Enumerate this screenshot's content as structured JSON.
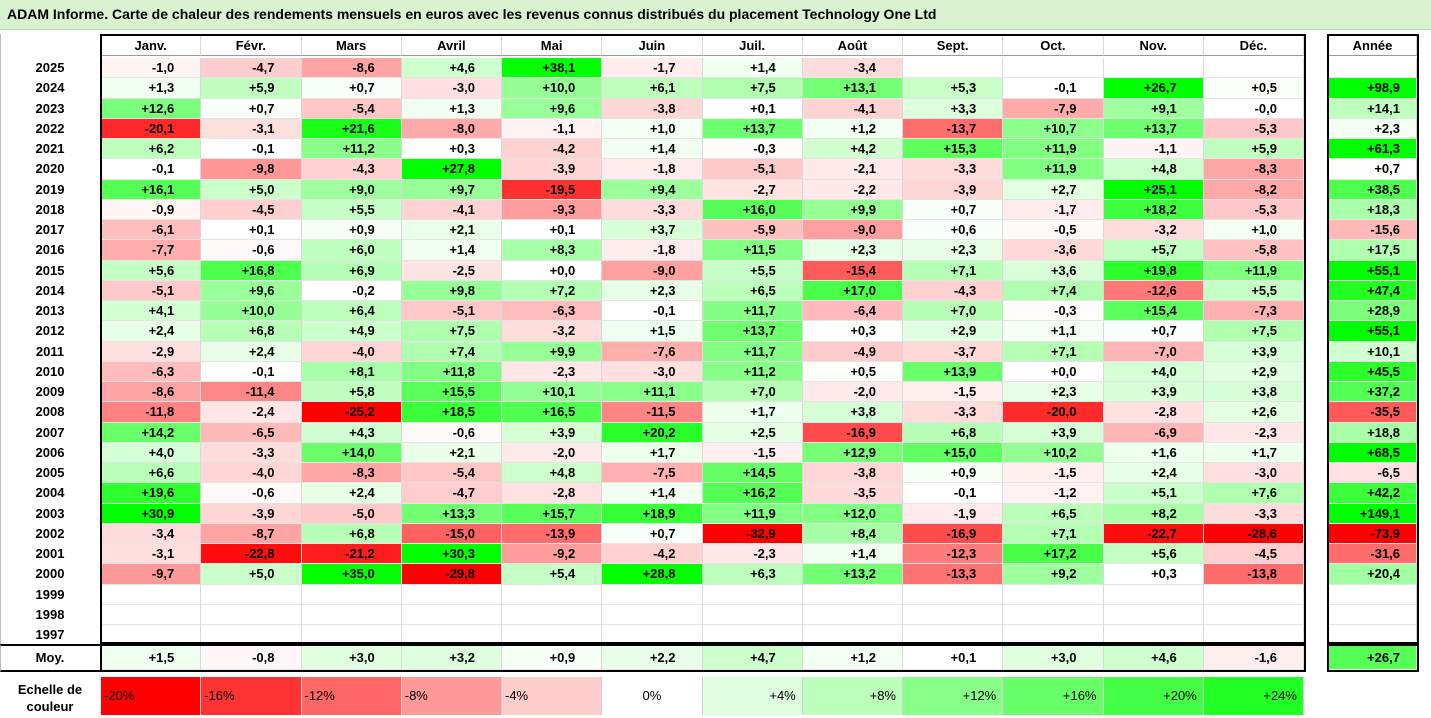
{
  "title": "ADAM Informe. Carte de chaleur des rendements mensuels en euros avec les revenus connus distribués du placement Technology One Ltd",
  "chart_data": {
    "type": "heatmap",
    "title": "ADAM Informe. Carte de chaleur des rendements mensuels en euros avec les revenus connus distribués du placement Technology One Ltd",
    "months": [
      "Janv.",
      "Févr.",
      "Mars",
      "Avril",
      "Mai",
      "Juin",
      "Juil.",
      "Août",
      "Sept.",
      "Oct.",
      "Nov.",
      "Déc."
    ],
    "year_header": "Année",
    "rows": [
      {
        "year": "2025",
        "values": [
          "-1,0",
          "-4,7",
          "-8,6",
          "+4,6",
          "+38,1",
          "-1,7",
          "+1,4",
          "-3,4",
          "",
          "",
          "",
          ""
        ],
        "annual": ""
      },
      {
        "year": "2024",
        "values": [
          "+1,3",
          "+5,9",
          "+0,7",
          "-3,0",
          "+10,0",
          "+6,1",
          "+7,5",
          "+13,1",
          "+5,3",
          "-0,1",
          "+26,7",
          "+0,5"
        ],
        "annual": "+98,9"
      },
      {
        "year": "2023",
        "values": [
          "+12,6",
          "+0,7",
          "-5,4",
          "+1,3",
          "+9,6",
          "-3,8",
          "+0,1",
          "-4,1",
          "+3,3",
          "-7,9",
          "+9,1",
          "-0,0"
        ],
        "annual": "+14,1"
      },
      {
        "year": "2022",
        "values": [
          "-20,1",
          "-3,1",
          "+21,6",
          "-8,0",
          "-1,1",
          "+1,0",
          "+13,7",
          "+1,2",
          "-13,7",
          "+10,7",
          "+13,7",
          "-5,3"
        ],
        "annual": "+2,3"
      },
      {
        "year": "2021",
        "values": [
          "+6,2",
          "-0,1",
          "+11,2",
          "+0,3",
          "-4,2",
          "+1,4",
          "-0,3",
          "+4,2",
          "+15,3",
          "+11,9",
          "-1,1",
          "+5,9"
        ],
        "annual": "+61,3"
      },
      {
        "year": "2020",
        "values": [
          "-0,1",
          "-9,8",
          "-4,3",
          "+27,8",
          "-3,9",
          "-1,8",
          "-5,1",
          "-2,1",
          "-3,3",
          "+11,9",
          "+4,8",
          "-8,3"
        ],
        "annual": "+0,7"
      },
      {
        "year": "2019",
        "values": [
          "+16,1",
          "+5,0",
          "+9,0",
          "+9,7",
          "-19,5",
          "+9,4",
          "-2,7",
          "-2,2",
          "-3,9",
          "+2,7",
          "+25,1",
          "-8,2"
        ],
        "annual": "+38,5"
      },
      {
        "year": "2018",
        "values": [
          "-0,9",
          "-4,5",
          "+5,5",
          "-4,1",
          "-9,3",
          "-3,3",
          "+16,0",
          "+9,9",
          "+0,7",
          "-1,7",
          "+18,2",
          "-5,3"
        ],
        "annual": "+18,3"
      },
      {
        "year": "2017",
        "values": [
          "-6,1",
          "+0,1",
          "+0,9",
          "+2,1",
          "+0,1",
          "+3,7",
          "-5,9",
          "-9,0",
          "+0,6",
          "-0,5",
          "-3,2",
          "+1,0"
        ],
        "annual": "-15,6"
      },
      {
        "year": "2016",
        "values": [
          "-7,7",
          "-0,6",
          "+6,0",
          "+1,4",
          "+8,3",
          "-1,8",
          "+11,5",
          "+2,3",
          "+2,3",
          "-3,6",
          "+5,7",
          "-5,8"
        ],
        "annual": "+17,5"
      },
      {
        "year": "2015",
        "values": [
          "+5,6",
          "+16,8",
          "+6,9",
          "-2,5",
          "+0,0",
          "-9,0",
          "+5,5",
          "-15,4",
          "+7,1",
          "+3,6",
          "+19,8",
          "+11,9"
        ],
        "annual": "+55,1"
      },
      {
        "year": "2014",
        "values": [
          "-5,1",
          "+9,6",
          "-0,2",
          "+9,8",
          "+7,2",
          "+2,3",
          "+6,5",
          "+17,0",
          "-4,3",
          "+7,4",
          "-12,6",
          "+5,5"
        ],
        "annual": "+47,4"
      },
      {
        "year": "2013",
        "values": [
          "+4,1",
          "+10,0",
          "+6,4",
          "-5,1",
          "-6,3",
          "-0,1",
          "+11,7",
          "-6,4",
          "+7,0",
          "-0,3",
          "+15,4",
          "-7,3"
        ],
        "annual": "+28,9"
      },
      {
        "year": "2012",
        "values": [
          "+2,4",
          "+6,8",
          "+4,9",
          "+7,5",
          "-3,2",
          "+1,5",
          "+13,7",
          "+0,3",
          "+2,9",
          "+1,1",
          "+0,7",
          "+7,5"
        ],
        "annual": "+55,1"
      },
      {
        "year": "2011",
        "values": [
          "-2,9",
          "+2,4",
          "-4,0",
          "+7,4",
          "+9,9",
          "-7,6",
          "+11,7",
          "-4,9",
          "-3,7",
          "+7,1",
          "-7,0",
          "+3,9"
        ],
        "annual": "+10,1"
      },
      {
        "year": "2010",
        "values": [
          "-6,3",
          "-0,1",
          "+8,1",
          "+11,8",
          "-2,3",
          "-3,0",
          "+11,2",
          "+0,5",
          "+13,9",
          "+0,0",
          "+4,0",
          "+2,9"
        ],
        "annual": "+45,5"
      },
      {
        "year": "2009",
        "values": [
          "-8,6",
          "-11,4",
          "+5,8",
          "+15,5",
          "+10,1",
          "+11,1",
          "+7,0",
          "-2,0",
          "-1,5",
          "+2,3",
          "+3,9",
          "+3,8"
        ],
        "annual": "+37,2"
      },
      {
        "year": "2008",
        "values": [
          "-11,8",
          "-2,4",
          "-25,2",
          "+18,5",
          "+16,5",
          "-11,5",
          "+1,7",
          "+3,8",
          "-3,3",
          "-20,0",
          "-2,8",
          "+2,6"
        ],
        "annual": "-35,5"
      },
      {
        "year": "2007",
        "values": [
          "+14,2",
          "-6,5",
          "+4,3",
          "-0,6",
          "+3,9",
          "+20,2",
          "+2,5",
          "-16,9",
          "+6,8",
          "+3,9",
          "-6,9",
          "-2,3"
        ],
        "annual": "+18,8"
      },
      {
        "year": "2006",
        "values": [
          "+4,0",
          "-3,3",
          "+14,0",
          "+2,1",
          "-2,0",
          "+1,7",
          "-1,5",
          "+12,9",
          "+15,0",
          "+10,2",
          "+1,6",
          "+1,7"
        ],
        "annual": "+68,5"
      },
      {
        "year": "2005",
        "values": [
          "+6,6",
          "-4,0",
          "-8,3",
          "-5,4",
          "+4,8",
          "-7,5",
          "+14,5",
          "-3,8",
          "+0,9",
          "-1,5",
          "+2,4",
          "-3,0"
        ],
        "annual": "-6,5"
      },
      {
        "year": "2004",
        "values": [
          "+19,6",
          "-0,6",
          "+2,4",
          "-4,7",
          "-2,8",
          "+1,4",
          "+16,2",
          "-3,5",
          "-0,1",
          "-1,2",
          "+5,1",
          "+7,6"
        ],
        "annual": "+42,2"
      },
      {
        "year": "2003",
        "values": [
          "+30,9",
          "-3,9",
          "-5,0",
          "+13,3",
          "+15,7",
          "+18,9",
          "+11,9",
          "+12,0",
          "-1,9",
          "+6,5",
          "+8,2",
          "-3,3"
        ],
        "annual": "+149,1"
      },
      {
        "year": "2002",
        "values": [
          "-3,4",
          "-8,7",
          "+6,8",
          "-15,0",
          "-13,9",
          "+0,7",
          "-32,9",
          "+8,4",
          "-16,9",
          "+7,1",
          "-22,7",
          "-28,6"
        ],
        "annual": "-73,9"
      },
      {
        "year": "2001",
        "values": [
          "-3,1",
          "-22,8",
          "-21,2",
          "+30,3",
          "-9,2",
          "-4,2",
          "-2,3",
          "+1,4",
          "-12,3",
          "+17,2",
          "+5,6",
          "-4,5"
        ],
        "annual": "-31,6"
      },
      {
        "year": "2000",
        "values": [
          "-9,7",
          "+5,0",
          "+35,0",
          "-29,8",
          "+5,4",
          "+28,8",
          "+6,3",
          "+13,2",
          "-13,3",
          "+9,2",
          "+0,3",
          "-13,8"
        ],
        "annual": "+20,4"
      },
      {
        "year": "1999",
        "values": [
          "",
          "",
          "",
          "",
          "",
          "",
          "",
          "",
          "",
          "",
          "",
          ""
        ],
        "annual": ""
      },
      {
        "year": "1998",
        "values": [
          "",
          "",
          "",
          "",
          "",
          "",
          "",
          "",
          "",
          "",
          "",
          ""
        ],
        "annual": ""
      },
      {
        "year": "1997",
        "values": [
          "",
          "",
          "",
          "",
          "",
          "",
          "",
          "",
          "",
          "",
          "",
          ""
        ],
        "annual": ""
      }
    ],
    "average": {
      "label": "Moy.",
      "values": [
        "+1,5",
        "-0,8",
        "+3,0",
        "+3,2",
        "+0,9",
        "+2,2",
        "+4,7",
        "+1,2",
        "+0,1",
        "+3,0",
        "+4,6",
        "-1,6"
      ],
      "annual": "+26,7"
    },
    "scale": {
      "label": "Echelle de couleur",
      "steps": [
        "-20%",
        "-16%",
        "-12%",
        "-8%",
        "-4%",
        "0%",
        "+4%",
        "+8%",
        "+12%",
        "+16%",
        "+20%",
        "+24%"
      ],
      "colors": [
        "#ff0000",
        "#ff3333",
        "#ff6666",
        "#ff9999",
        "#ffcccc",
        "#ffffff",
        "#ddffdd",
        "#bbffbb",
        "#88ff88",
        "#66ff66",
        "#44ff44",
        "#22ff22"
      ]
    },
    "colors": {
      "negative_max": "#ff0000",
      "neutral": "#ffffff",
      "positive_max": "#00ff00",
      "title_bg": "#d9f2d0"
    }
  }
}
